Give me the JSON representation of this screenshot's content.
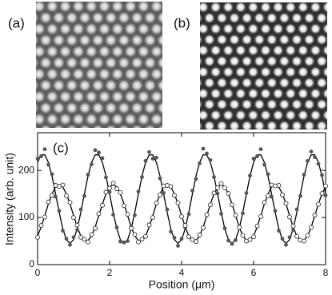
{
  "panels": {
    "a_label": "(a)",
    "b_label": "(b)"
  },
  "chart_data": {
    "type": "line",
    "annotation": "(c)",
    "x_label": "Position (μm)",
    "y_label": "Intensity (arb. unit)",
    "xlim": [
      0,
      8
    ],
    "ylim": [
      0,
      280
    ],
    "xticks": [
      0,
      2,
      4,
      6,
      8
    ],
    "yticks": [
      0,
      100,
      200
    ],
    "x": [
      0,
      0.1,
      0.2,
      0.3,
      0.4,
      0.5,
      0.6,
      0.7,
      0.8,
      0.9,
      1,
      1.1,
      1.2,
      1.3,
      1.4,
      1.5,
      1.6,
      1.7,
      1.8,
      1.9,
      2,
      2.1,
      2.2,
      2.3,
      2.4,
      2.5,
      2.6,
      2.7,
      2.8,
      2.9,
      3,
      3.1,
      3.2,
      3.3,
      3.4,
      3.5,
      3.6,
      3.7,
      3.8,
      3.9,
      4,
      4.1,
      4.2,
      4.3,
      4.4,
      4.5,
      4.6,
      4.7,
      4.8,
      4.9,
      5,
      5.1,
      5.2,
      5.3,
      5.4,
      5.5,
      5.6,
      5.7,
      5.8,
      5.9,
      6,
      6.1,
      6.2,
      6.3,
      6.4,
      6.5,
      6.6,
      6.7,
      6.8,
      6.9,
      7,
      7.1,
      7.2,
      7.3,
      7.4,
      7.5,
      7.6,
      7.7,
      7.8,
      7.9,
      8
    ],
    "series": [
      {
        "mode": "line",
        "color": "#000000",
        "values": [
          217,
          233,
          233,
          217,
          188,
          150,
          111,
          76,
          53,
          45,
          53,
          76,
          111,
          150,
          188,
          217,
          233,
          233,
          217,
          188,
          150,
          111,
          76,
          53,
          45,
          53,
          76,
          111,
          150,
          188,
          217,
          233,
          233,
          217,
          188,
          150,
          111,
          76,
          53,
          45,
          53,
          76,
          111,
          150,
          188,
          217,
          233,
          233,
          217,
          188,
          150,
          111,
          76,
          53,
          45,
          53,
          76,
          111,
          150,
          188,
          217,
          233,
          233,
          217,
          188,
          150,
          111,
          76,
          53,
          45,
          53,
          76,
          111,
          150,
          188,
          217,
          233,
          233,
          217,
          188,
          150
        ]
      },
      {
        "mode": "line",
        "color": "#000000",
        "values": [
          61,
          80,
          104,
          129,
          150,
          165,
          170,
          165,
          150,
          129,
          104,
          80,
          61,
          51,
          51,
          61,
          80,
          104,
          129,
          150,
          165,
          170,
          165,
          150,
          129,
          104,
          80,
          61,
          51,
          51,
          61,
          80,
          104,
          129,
          150,
          165,
          170,
          165,
          150,
          129,
          104,
          80,
          61,
          51,
          51,
          61,
          80,
          104,
          129,
          150,
          165,
          170,
          165,
          150,
          129,
          104,
          80,
          61,
          51,
          51,
          61,
          80,
          104,
          129,
          150,
          165,
          170,
          165,
          150,
          129,
          104,
          80,
          61,
          51,
          51,
          61,
          80,
          104,
          129,
          150,
          165
        ]
      },
      {
        "mode": "filled-markers",
        "color": "#555555",
        "values": [
          225,
          230,
          245,
          212,
          192,
          144,
          114,
          72,
          55,
          42,
          58,
          74,
          117,
          146,
          191,
          213,
          243,
          238,
          226,
          185,
          154,
          106,
          79,
          49,
          47,
          50,
          80,
          105,
          155,
          186,
          220,
          239,
          225,
          227,
          183,
          152,
          117,
          70,
          57,
          40,
          55,
          79,
          107,
          157,
          182,
          215,
          246,
          236,
          222,
          186,
          151,
          108,
          77,
          51,
          44,
          52,
          78,
          109,
          152,
          189,
          225,
          230,
          245,
          212,
          192,
          144,
          114,
          72,
          55,
          42,
          58,
          74,
          117,
          146,
          191,
          220,
          240,
          228,
          214,
          190,
          147
        ]
      },
      {
        "mode": "open-markers",
        "color": "#333333",
        "values": [
          58,
          83,
          101,
          133,
          147,
          168,
          166,
          169,
          146,
          132,
          100,
          84,
          58,
          54,
          48,
          64,
          77,
          108,
          126,
          154,
          162,
          173,
          161,
          153,
          125,
          107,
          77,
          64,
          48,
          54,
          60,
          84,
          100,
          131,
          148,
          167,
          168,
          166,
          147,
          131,
          102,
          83,
          59,
          53,
          49,
          63,
          78,
          106,
          127,
          152,
          163,
          172,
          163,
          151,
          127,
          105,
          79,
          62,
          50,
          53,
          59,
          82,
          102,
          132,
          146,
          169,
          167,
          168,
          148,
          130,
          101,
          82,
          60,
          52,
          50,
          62,
          79,
          105,
          128,
          151,
          167
        ]
      }
    ]
  }
}
